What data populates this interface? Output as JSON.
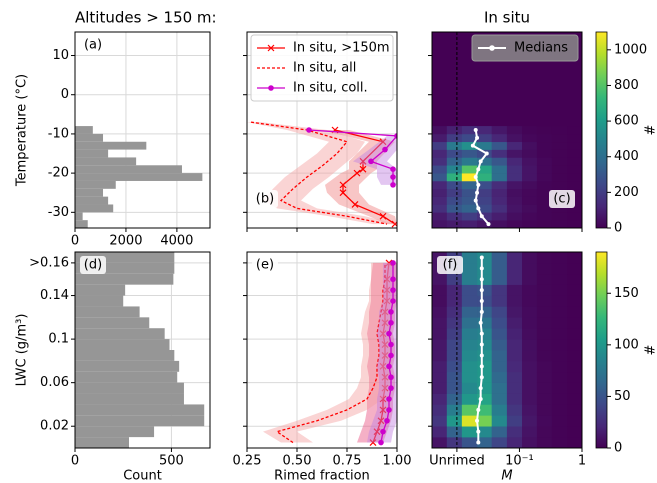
{
  "chart_data": [
    {
      "type": "histogram",
      "orientation": "horizontal",
      "title": "Altitudes > 150 m:",
      "label": "(a)",
      "ylabel": "Temperature (°C)",
      "bins": [
        -34,
        -32,
        -30,
        -28,
        -26,
        -24,
        -22,
        -20,
        -18,
        -16,
        -14,
        -12,
        -10,
        -8
      ],
      "values": [
        500,
        300,
        1500,
        1300,
        1100,
        1600,
        5000,
        4200,
        2400,
        1300,
        2800,
        1100,
        700
      ],
      "color": "#969696",
      "xlim": [
        0,
        5300
      ],
      "xticks": [
        0,
        2000,
        4000
      ],
      "ylim": [
        -34,
        16
      ],
      "yticks": [
        -30,
        -20,
        -10,
        0,
        10
      ],
      "grid": true
    },
    {
      "type": "line",
      "label": "(b)",
      "xlim": [
        0.25,
        1
      ],
      "xticks": [
        0.25,
        {
          "value": 0.5,
          "label": "0.50"
        },
        0.75,
        {
          "value": 1,
          "label": "1.00"
        }
      ],
      "ylim": [
        -34,
        16
      ],
      "yticks": [
        -30,
        -20,
        -10,
        0,
        10
      ],
      "grid": true,
      "sharex": true,
      "sharey": true,
      "legend": "upper center",
      "series": [
        {
          "name": "In situ, >150m",
          "color": "#ff0000",
          "band_color": "#f08080",
          "marker": "x",
          "dash": false,
          "y": [
            -9,
            -12,
            -17,
            -19,
            -20,
            -23,
            -25,
            -28,
            -31,
            -33
          ],
          "x": [
            0.69,
            0.93,
            0.83,
            0.83,
            0.8,
            0.73,
            0.73,
            0.79,
            0.93,
            0.99
          ],
          "lower": [
            0.62,
            0.86,
            0.76,
            0.76,
            0.72,
            0.64,
            0.65,
            0.71,
            0.86,
            0.95
          ],
          "upper": [
            0.76,
            0.99,
            0.9,
            0.9,
            0.87,
            0.81,
            0.81,
            0.86,
            0.99,
            1.0
          ]
        },
        {
          "name": "In situ, all",
          "color": "#ff0000",
          "band_color": "#f4a0a0",
          "marker": "none",
          "dash": true,
          "y": [
            -7,
            -9,
            -12,
            -15,
            -18,
            -21,
            -24,
            -27,
            -29,
            -31,
            -33
          ],
          "x": [
            0.27,
            0.55,
            0.75,
            0.7,
            0.63,
            0.55,
            0.48,
            0.42,
            0.5,
            0.75,
            0.95
          ],
          "lower": [
            0.25,
            0.45,
            0.66,
            0.6,
            0.52,
            0.44,
            0.38,
            0.33,
            0.4,
            0.66,
            0.88
          ],
          "upper": [
            0.32,
            0.65,
            0.84,
            0.8,
            0.73,
            0.66,
            0.58,
            0.52,
            0.6,
            0.84,
            1.0
          ]
        },
        {
          "name": "In situ, coll.",
          "color": "#cc00cc",
          "band_color": "#c080e0",
          "marker": "o",
          "dash": false,
          "y": [
            -9,
            -10.5,
            -14,
            -17,
            -19,
            -21,
            -23
          ],
          "x": [
            0.56,
            1.0,
            0.94,
            0.87,
            0.98,
            0.98,
            0.98
          ],
          "lower": [
            0.52,
            0.95,
            0.86,
            0.78,
            0.9,
            0.9,
            0.92
          ],
          "upper": [
            0.62,
            1.0,
            1.0,
            0.95,
            1.0,
            1.0,
            1.0
          ]
        }
      ]
    },
    {
      "type": "heatmap",
      "title": "In situ",
      "title_color": "#ff0000",
      "label": "(c)",
      "xscale": "log",
      "xlim": [
        0.004,
        1
      ],
      "xticks": [
        {
          "value": 0.01,
          "label": "Unrimed"
        },
        {
          "value": 0.1,
          "label": "10⁻¹"
        },
        1
      ],
      "ylim": [
        -34,
        16
      ],
      "yticks": [
        -30,
        -20,
        -10,
        0,
        10
      ],
      "sharex": true,
      "sharey": true,
      "colormap": "viridis",
      "legend": "upper right",
      "x_edges": [
        0.004,
        0.0069,
        0.012,
        0.021,
        0.036,
        0.063,
        0.11,
        0.19,
        0.33,
        0.58,
        1
      ],
      "y_edges": [
        -34,
        -32,
        -30,
        -28,
        -26,
        -24,
        -22,
        -20,
        -18,
        -16,
        -14,
        -12,
        -10,
        -8
      ],
      "z": [
        [
          60,
          80,
          90,
          60,
          40,
          20,
          10,
          5,
          2,
          0
        ],
        [
          80,
          150,
          200,
          150,
          90,
          40,
          20,
          10,
          5,
          0
        ],
        [
          150,
          300,
          350,
          250,
          150,
          60,
          30,
          10,
          5,
          0
        ],
        [
          120,
          250,
          300,
          220,
          120,
          50,
          20,
          10,
          5,
          0
        ],
        [
          100,
          200,
          280,
          200,
          110,
          40,
          20,
          10,
          5,
          0
        ],
        [
          120,
          250,
          350,
          260,
          140,
          60,
          30,
          10,
          5,
          0
        ],
        [
          300,
          700,
          1100,
          700,
          400,
          150,
          60,
          20,
          5,
          0
        ],
        [
          250,
          500,
          800,
          650,
          400,
          150,
          60,
          20,
          5,
          0
        ],
        [
          150,
          350,
          450,
          400,
          300,
          120,
          50,
          20,
          5,
          0
        ],
        [
          120,
          250,
          300,
          250,
          150,
          60,
          30,
          10,
          5,
          0
        ],
        [
          200,
          450,
          550,
          450,
          300,
          120,
          40,
          10,
          5,
          0
        ],
        [
          80,
          200,
          250,
          200,
          120,
          50,
          20,
          10,
          5,
          0
        ],
        [
          40,
          100,
          150,
          120,
          70,
          30,
          10,
          5,
          2,
          0
        ]
      ],
      "colorbar": {
        "lim": [
          0,
          1100
        ],
        "ticks": [
          0,
          200,
          400,
          600,
          800,
          1000
        ],
        "label": "#"
      },
      "series": [
        {
          "name": "Medians",
          "color": "#ffffff",
          "marker": "o",
          "y": [
            -9,
            -11,
            -13,
            -15,
            -17,
            -19,
            -21,
            -23,
            -25,
            -27,
            -29,
            -31,
            -33
          ],
          "x": [
            0.02,
            0.021,
            0.018,
            0.03,
            0.024,
            0.022,
            0.02,
            0.022,
            0.021,
            0.02,
            0.022,
            0.025,
            0.032
          ]
        }
      ]
    },
    {
      "type": "histogram",
      "orientation": "horizontal",
      "label": "(d)",
      "xlabel": "Count",
      "ylabel": "LWC (g/m³)",
      "bins": [
        0,
        0.01,
        0.02,
        0.03,
        0.04,
        0.05,
        0.06,
        0.07,
        0.08,
        0.09,
        0.1,
        0.11,
        0.12,
        0.13,
        0.14,
        0.15,
        0.16,
        0.17,
        0.18
      ],
      "values": [
        280,
        410,
        670,
        670,
        565,
        565,
        530,
        540,
        515,
        490,
        465,
        385,
        335,
        250,
        260,
        510,
        515,
        515
      ],
      "color": "#969696",
      "xlim": [
        0,
        700
      ],
      "xticks": [
        0,
        500
      ],
      "ylim": [
        0,
        0.18
      ],
      "yticks": [
        0.02,
        0.06,
        0.1,
        0.14,
        {
          "value": 0.17,
          "label": ">0.16"
        }
      ],
      "grid": true
    },
    {
      "type": "line",
      "label": "(e)",
      "xlabel": "Rimed fraction",
      "xlim": [
        0.25,
        1
      ],
      "xticks": [
        0.25,
        {
          "value": 0.5,
          "label": "0.50"
        },
        0.75,
        {
          "value": 1,
          "label": "1.00"
        }
      ],
      "ylim": [
        0,
        0.18
      ],
      "yticks": [
        0.02,
        0.06,
        0.1,
        0.14,
        0.17
      ],
      "grid": true,
      "sharey": true,
      "series": [
        {
          "color": "#ff0000",
          "band_color": "#e85080",
          "marker": "x",
          "dash": false,
          "y": [
            0.005,
            0.015,
            0.025,
            0.035,
            0.045,
            0.055,
            0.065,
            0.075,
            0.085,
            0.095,
            0.105,
            0.115,
            0.125,
            0.135,
            0.145,
            0.155,
            0.17
          ],
          "x": [
            0.88,
            0.9,
            0.92,
            0.93,
            0.93,
            0.94,
            0.94,
            0.93,
            0.94,
            0.94,
            0.93,
            0.94,
            0.94,
            0.95,
            0.95,
            0.95,
            0.96
          ],
          "lower": [
            0.8,
            0.82,
            0.84,
            0.85,
            0.85,
            0.86,
            0.86,
            0.85,
            0.86,
            0.86,
            0.85,
            0.86,
            0.86,
            0.87,
            0.87,
            0.87,
            0.88
          ],
          "upper": [
            0.93,
            0.95,
            0.97,
            0.98,
            0.98,
            0.99,
            0.99,
            0.98,
            0.99,
            0.99,
            0.98,
            0.99,
            0.99,
            1.0,
            1.0,
            1.0,
            1.0
          ]
        },
        {
          "color": "#ff0000",
          "band_color": "#f4a0a0",
          "marker": "none",
          "dash": true,
          "y": [
            0.005,
            0.015,
            0.025,
            0.035,
            0.045,
            0.055,
            0.065,
            0.075,
            0.085,
            0.095,
            0.105,
            0.115,
            0.125,
            0.135,
            0.145,
            0.155,
            0.17
          ],
          "x": [
            0.48,
            0.4,
            0.6,
            0.75,
            0.85,
            0.88,
            0.9,
            0.9,
            0.91,
            0.91,
            0.9,
            0.91,
            0.92,
            0.93,
            0.93,
            0.94,
            0.94
          ],
          "lower": [
            0.42,
            0.33,
            0.5,
            0.65,
            0.76,
            0.8,
            0.82,
            0.82,
            0.83,
            0.83,
            0.82,
            0.83,
            0.84,
            0.86,
            0.86,
            0.87,
            0.87
          ],
          "upper": [
            0.58,
            0.5,
            0.72,
            0.85,
            0.93,
            0.95,
            0.97,
            0.97,
            0.98,
            0.98,
            0.97,
            0.98,
            0.98,
            0.99,
            0.99,
            1.0,
            1.0
          ]
        },
        {
          "color": "#cc00cc",
          "band_color": "#c080e0",
          "marker": "o",
          "dash": false,
          "y": [
            0.005,
            0.015,
            0.025,
            0.035,
            0.045,
            0.055,
            0.065,
            0.075,
            0.085,
            0.095,
            0.105,
            0.115,
            0.125,
            0.135,
            0.145,
            0.155,
            0.17
          ],
          "x": [
            0.92,
            0.93,
            0.95,
            0.96,
            0.96,
            0.97,
            0.97,
            0.96,
            0.97,
            0.97,
            0.96,
            0.97,
            0.97,
            0.98,
            0.98,
            0.98,
            0.98
          ],
          "lower": [
            0.85,
            0.86,
            0.88,
            0.9,
            0.9,
            0.91,
            0.91,
            0.9,
            0.91,
            0.91,
            0.9,
            0.91,
            0.91,
            0.93,
            0.93,
            0.93,
            0.93
          ],
          "upper": [
            0.97,
            0.98,
            1.0,
            1.0,
            1.0,
            1.0,
            1.0,
            1.0,
            1.0,
            1.0,
            1.0,
            1.0,
            1.0,
            1.0,
            1.0,
            1.0,
            1.0
          ]
        }
      ]
    },
    {
      "type": "heatmap",
      "label": "(f)",
      "xlabel": "M",
      "xlabel_italic": true,
      "xscale": "log",
      "xlim": [
        0.004,
        1
      ],
      "xticks": [
        {
          "value": 0.01,
          "label": "Unrimed"
        },
        {
          "value": 0.1,
          "label": "10⁻¹"
        },
        1
      ],
      "ylim": [
        0,
        0.18
      ],
      "yticks": [
        0.02,
        0.06,
        0.1,
        0.14,
        0.17
      ],
      "sharey": true,
      "colormap": "viridis",
      "x_edges": [
        0.004,
        0.0069,
        0.012,
        0.021,
        0.036,
        0.063,
        0.11,
        0.19,
        0.33,
        0.58,
        1
      ],
      "y_edges": [
        0,
        0.01,
        0.02,
        0.03,
        0.04,
        0.05,
        0.06,
        0.07,
        0.08,
        0.09,
        0.1,
        0.11,
        0.12,
        0.13,
        0.14,
        0.15,
        0.16,
        0.17,
        0.18
      ],
      "z": [
        [
          10,
          30,
          50,
          60,
          40,
          20,
          8,
          3,
          1,
          0
        ],
        [
          20,
          60,
          100,
          90,
          60,
          25,
          10,
          3,
          1,
          0
        ],
        [
          30,
          100,
          180,
          150,
          90,
          35,
          12,
          4,
          1,
          0
        ],
        [
          25,
          80,
          140,
          130,
          80,
          30,
          10,
          3,
          1,
          0
        ],
        [
          20,
          60,
          100,
          110,
          70,
          25,
          8,
          3,
          1,
          0
        ],
        [
          15,
          50,
          90,
          100,
          70,
          25,
          8,
          3,
          1,
          0
        ],
        [
          15,
          50,
          95,
          100,
          65,
          25,
          8,
          3,
          1,
          0
        ],
        [
          15,
          45,
          95,
          100,
          60,
          22,
          8,
          3,
          1,
          0
        ],
        [
          12,
          40,
          90,
          95,
          60,
          20,
          7,
          2,
          1,
          0
        ],
        [
          12,
          40,
          85,
          90,
          55,
          20,
          7,
          2,
          1,
          0
        ],
        [
          10,
          35,
          80,
          85,
          50,
          18,
          6,
          2,
          1,
          0
        ],
        [
          10,
          30,
          70,
          75,
          45,
          15,
          5,
          2,
          1,
          0
        ],
        [
          8,
          25,
          60,
          60,
          40,
          12,
          5,
          2,
          1,
          0
        ],
        [
          6,
          20,
          45,
          45,
          30,
          10,
          4,
          2,
          1,
          0
        ],
        [
          6,
          20,
          45,
          50,
          30,
          10,
          4,
          2,
          1,
          0
        ],
        [
          10,
          35,
          80,
          90,
          55,
          20,
          6,
          2,
          1,
          0
        ],
        [
          10,
          35,
          80,
          90,
          55,
          20,
          6,
          2,
          1,
          0
        ],
        [
          10,
          35,
          80,
          90,
          55,
          20,
          6,
          2,
          1,
          0
        ]
      ],
      "colorbar": {
        "lim": [
          0,
          190
        ],
        "ticks": [
          0,
          50,
          100,
          150
        ],
        "label": "#"
      },
      "series": [
        {
          "color": "#ffffff",
          "marker": "o",
          "y": [
            0.005,
            0.015,
            0.025,
            0.035,
            0.045,
            0.055,
            0.065,
            0.075,
            0.085,
            0.095,
            0.105,
            0.115,
            0.125,
            0.135,
            0.145,
            0.155,
            0.165,
            0.175
          ],
          "x": [
            0.022,
            0.022,
            0.021,
            0.022,
            0.024,
            0.024,
            0.025,
            0.025,
            0.025,
            0.025,
            0.025,
            0.024,
            0.025,
            0.025,
            0.025,
            0.025,
            0.025,
            0.025
          ]
        }
      ]
    }
  ]
}
